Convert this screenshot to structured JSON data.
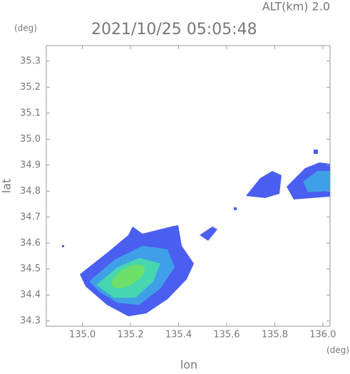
{
  "chart_data": {
    "type": "radar-map",
    "title": "2021/10/25 05:05:48",
    "subtitle": "ALT(km) 2.0",
    "x_label": "lon",
    "y_label": "lat",
    "x_unit": "(deg)",
    "y_unit": "(deg)",
    "xlim": [
      134.85,
      136.03
    ],
    "ylim": [
      34.28,
      35.36
    ],
    "xticks": [
      {
        "value": 135.0,
        "label": "135.0"
      },
      135.2,
      135.4,
      135.6,
      135.8,
      {
        "value": 136.0,
        "label": "136.0"
      }
    ],
    "yticks": [
      34.3,
      34.4,
      34.5,
      34.6,
      34.7,
      34.8,
      34.9,
      {
        "value": 35.0,
        "label": "35.0"
      },
      35.1,
      35.2,
      35.3
    ]
  }
}
